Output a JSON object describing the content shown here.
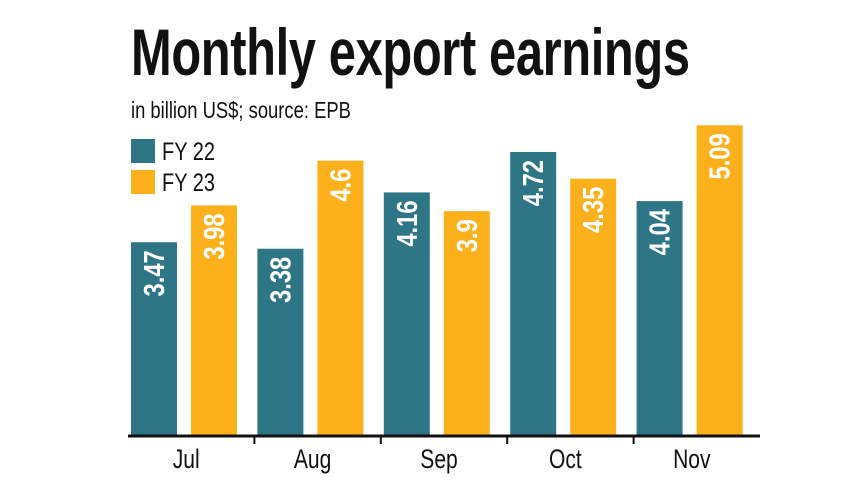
{
  "chart_data": {
    "type": "bar",
    "title": "Monthly export earnings",
    "subtitle": "in billion US$; source: EPB",
    "categories": [
      "Jul",
      "Aug",
      "Sep",
      "Oct",
      "Nov"
    ],
    "series": [
      {
        "name": "FY 22",
        "color": "#2e7686",
        "values": [
          3.47,
          3.38,
          4.16,
          4.72,
          4.04
        ]
      },
      {
        "name": "FY 23",
        "color": "#fbb01c",
        "values": [
          3.98,
          4.6,
          3.9,
          4.35,
          5.09
        ]
      }
    ],
    "ylim": [
      0.8,
      5.1
    ],
    "grid": false,
    "legend": "top-left",
    "data_labels": true
  }
}
